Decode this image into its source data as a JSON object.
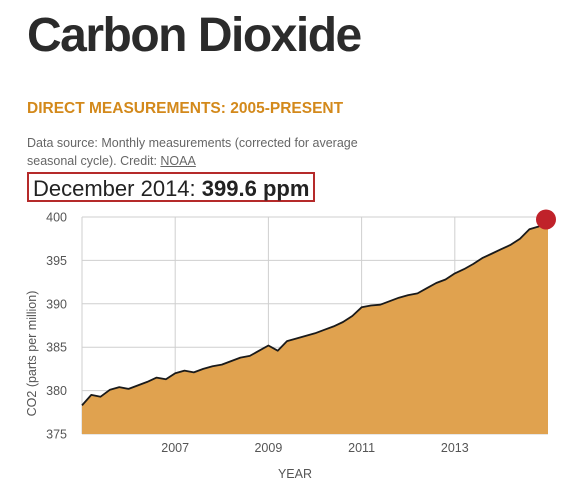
{
  "header": {
    "title": "Carbon Dioxide",
    "subtitle": "DIRECT MEASUREMENTS: 2005-PRESENT"
  },
  "source": {
    "text": "Data source: Monthly measurements (corrected for average seasonal cycle). Credit:",
    "credit_link": "NOAA"
  },
  "readout": {
    "label": "December 2014:",
    "value": "399.6 ppm"
  },
  "colors": {
    "area_fill": "#e0a24f",
    "line": "#1a1a1a",
    "marker": "#c0222a",
    "subtitle": "#d3891b",
    "readout_border": "#b52a2a"
  },
  "chart_data": {
    "type": "area",
    "xlabel": "YEAR",
    "ylabel": "CO2 (parts per million)",
    "xlim": [
      2005.0,
      2015.0
    ],
    "ylim": [
      375,
      400
    ],
    "x_ticks": [
      2007,
      2009,
      2011,
      2013
    ],
    "y_ticks": [
      375,
      380,
      385,
      390,
      395,
      400
    ],
    "grid": true,
    "series": [
      {
        "values": [
          [
            2005.0,
            378.3
          ],
          [
            2005.2,
            379.5
          ],
          [
            2005.4,
            379.3
          ],
          [
            2005.6,
            380.1
          ],
          [
            2005.8,
            380.4
          ],
          [
            2006.0,
            380.2
          ],
          [
            2006.2,
            380.6
          ],
          [
            2006.4,
            381.0
          ],
          [
            2006.6,
            381.5
          ],
          [
            2006.8,
            381.3
          ],
          [
            2007.0,
            382.0
          ],
          [
            2007.2,
            382.3
          ],
          [
            2007.4,
            382.1
          ],
          [
            2007.6,
            382.5
          ],
          [
            2007.8,
            382.8
          ],
          [
            2008.0,
            383.0
          ],
          [
            2008.2,
            383.4
          ],
          [
            2008.4,
            383.8
          ],
          [
            2008.6,
            384.0
          ],
          [
            2008.8,
            384.6
          ],
          [
            2009.0,
            385.2
          ],
          [
            2009.2,
            384.6
          ],
          [
            2009.4,
            385.7
          ],
          [
            2009.6,
            386.0
          ],
          [
            2009.8,
            386.3
          ],
          [
            2010.0,
            386.6
          ],
          [
            2010.2,
            387.0
          ],
          [
            2010.4,
            387.4
          ],
          [
            2010.6,
            387.9
          ],
          [
            2010.8,
            388.6
          ],
          [
            2011.0,
            389.6
          ],
          [
            2011.2,
            389.8
          ],
          [
            2011.4,
            389.9
          ],
          [
            2011.6,
            390.3
          ],
          [
            2011.8,
            390.7
          ],
          [
            2012.0,
            391.0
          ],
          [
            2012.2,
            391.2
          ],
          [
            2012.4,
            391.8
          ],
          [
            2012.6,
            392.4
          ],
          [
            2012.8,
            392.8
          ],
          [
            2013.0,
            393.5
          ],
          [
            2013.2,
            394.0
          ],
          [
            2013.4,
            394.6
          ],
          [
            2013.6,
            395.3
          ],
          [
            2013.8,
            395.8
          ],
          [
            2014.0,
            396.3
          ],
          [
            2014.2,
            396.8
          ],
          [
            2014.4,
            397.5
          ],
          [
            2014.6,
            398.6
          ],
          [
            2014.8,
            398.9
          ],
          [
            2015.0,
            399.6
          ]
        ]
      }
    ],
    "highlight": {
      "x": 2015.0,
      "y": 399.6
    }
  }
}
